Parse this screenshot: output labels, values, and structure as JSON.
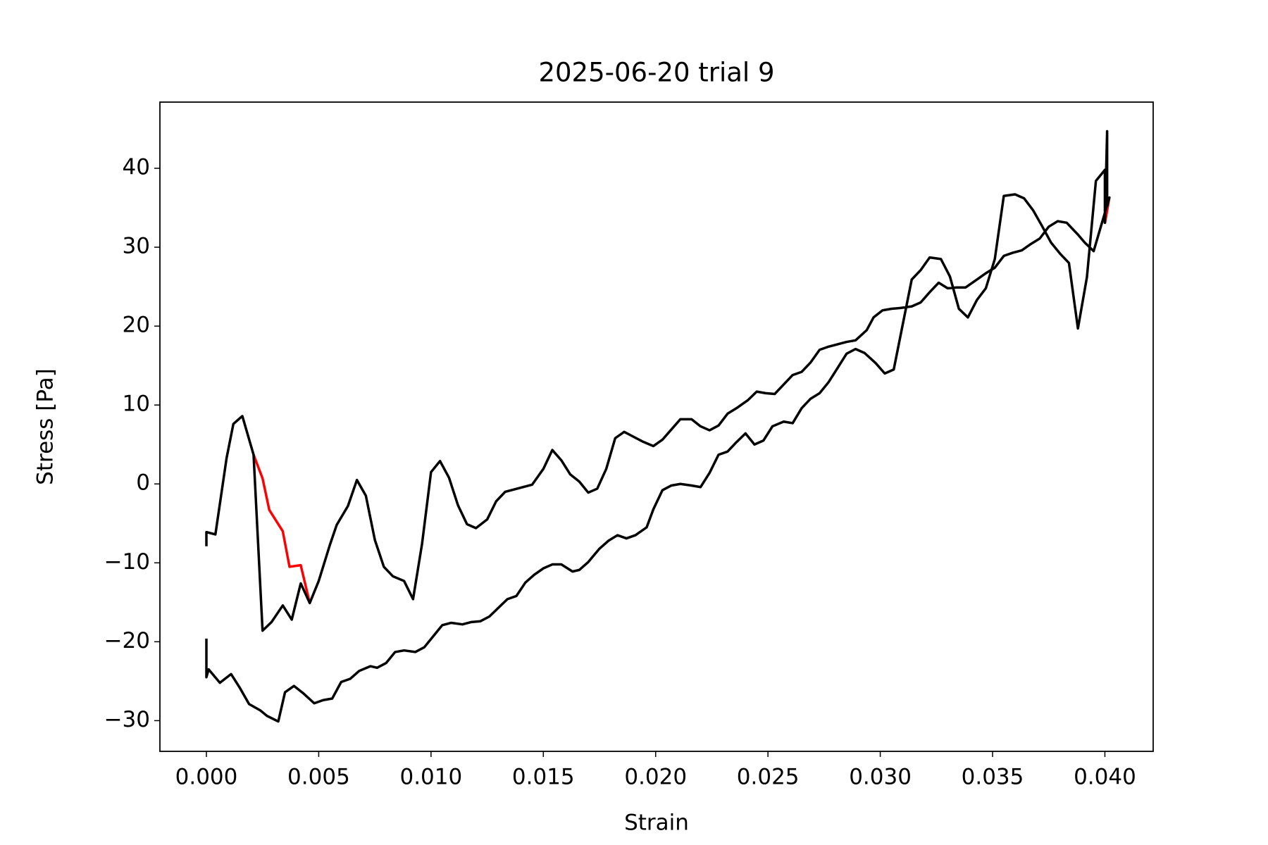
{
  "chart_data": {
    "type": "line",
    "title": "2025-06-20 trial 9",
    "x_label": "Strain",
    "y_label": "Stress [Pa]",
    "xlim": [
      -0.00207,
      0.04215
    ],
    "ylim": [
      -33.89,
      48.39
    ],
    "xticks": [
      {
        "value": 0,
        "label": "0.000"
      },
      {
        "value": 0.005,
        "label": "0.005"
      },
      {
        "value": 0.01,
        "label": "0.010"
      },
      {
        "value": 0.015,
        "label": "0.015"
      },
      {
        "value": 0.02,
        "label": "0.020"
      },
      {
        "value": 0.025,
        "label": "0.025"
      },
      {
        "value": 0.03,
        "label": "0.030"
      },
      {
        "value": 0.035,
        "label": "0.035"
      },
      {
        "value": 0.04,
        "label": "0.040"
      }
    ],
    "yticks": [
      {
        "value": -30,
        "label": "−30"
      },
      {
        "value": -20,
        "label": "−20"
      },
      {
        "value": -10,
        "label": "−10"
      },
      0,
      10,
      20,
      30,
      40
    ],
    "grid": false,
    "series": [
      {
        "color": "#ff0000",
        "x": [
          0.0021,
          0.0025,
          0.0028,
          0.0034,
          0.0037,
          0.0042,
          0.0046,
          null,
          0.04,
          0.0402
        ],
        "values": [
          3.7,
          0.7,
          -3.3,
          -6.0,
          -10.5,
          -10.3,
          -15.1,
          null,
          33.0,
          36.3
        ]
      },
      {
        "color": "#000000",
        "x": [
          0,
          0,
          0.0001,
          0.0006,
          0.0011,
          0.0015,
          0.0019,
          0.0024,
          0.0027,
          0.0032,
          0.0035,
          0.0039,
          0.0043,
          0.0048,
          0.0052,
          0.0056,
          0.006,
          0.0064,
          0.0068,
          0.0073,
          0.0076,
          0.008,
          0.0084,
          0.0088,
          0.0093,
          0.0097,
          0.0101,
          0.0105,
          0.0109,
          0.0114,
          0.0118,
          0.0122,
          0.0126,
          0.013,
          0.0134,
          0.0138,
          0.0142,
          0.0146,
          0.015,
          0.0154,
          0.0158,
          0.0163,
          0.0166,
          0.017,
          0.0175,
          0.0179,
          0.0183,
          0.0187,
          0.0191,
          0.0196,
          0.0199,
          0.0203,
          0.0207,
          0.0211,
          0.0216,
          0.022,
          0.0224,
          0.0228,
          0.0232,
          0.0236,
          0.024,
          0.0244,
          0.0248,
          0.0252,
          0.0257,
          0.0261,
          0.0265,
          0.0269,
          0.0273,
          0.0277,
          0.0281,
          0.0285,
          0.0289,
          0.0293,
          0.0298,
          0.0302,
          0.0306,
          0.0314,
          0.0318,
          0.0322,
          0.0327,
          0.0331,
          0.0335,
          0.0339,
          0.0343,
          0.0347,
          0.0351,
          0.0355,
          0.036,
          0.0364,
          0.0368,
          0.0372,
          0.0376,
          0.038,
          0.0384,
          0.0388,
          0.0392,
          0.0396,
          0.04,
          0.04,
          0.0401,
          0.0401,
          0.0402,
          0.0395,
          0.0391,
          0.0388,
          0.0383,
          0.0379,
          0.0375,
          0.0371,
          0.0367,
          0.0363,
          0.0359,
          0.0355,
          0.0351,
          0.0347,
          0.0343,
          0.0338,
          0.0334,
          0.033,
          0.0326,
          0.0322,
          0.0318,
          0.0314,
          0.0309,
          0.0305,
          0.0301,
          0.0297,
          0.0294,
          0.0289,
          0.0285,
          0.0281,
          0.0277,
          0.0273,
          0.0269,
          0.0265,
          0.0261,
          0.0257,
          0.0253,
          0.0249,
          0.0245,
          0.0241,
          0.0236,
          0.0232,
          0.0228,
          0.0224,
          0.022,
          0.0216,
          0.0211,
          0.0207,
          0.0203,
          0.0199,
          0.0194,
          0.019,
          0.0186,
          0.0182,
          0.0178,
          0.0174,
          0.017,
          0.0166,
          0.0162,
          0.0158,
          0.0154,
          0.015,
          0.0145,
          0.0141,
          0.0137,
          0.0133,
          0.0129,
          0.0125,
          0.012,
          0.0116,
          0.0112,
          0.0108,
          0.0104,
          0.01,
          0.0096,
          0.0092,
          0.0088,
          0.0083,
          0.0079,
          0.0075,
          0.0071,
          0.0067,
          0.0063,
          0.0058,
          0.0055,
          0.005,
          0.0046,
          0.0042,
          0.0038,
          0.0034,
          0.0029,
          0.0025,
          0.0021,
          0.0016,
          0.0012,
          0.0009,
          0.0004,
          0,
          0
        ],
        "values": [
          -19.6,
          -24.5,
          -23.5,
          -25.2,
          -24.1,
          -25.9,
          -27.9,
          -28.7,
          -29.4,
          -30.1,
          -26.4,
          -25.6,
          -26.5,
          -27.8,
          -27.4,
          -27.2,
          -25.1,
          -24.7,
          -23.7,
          -23.1,
          -23.3,
          -22.7,
          -21.3,
          -21.1,
          -21.3,
          -20.7,
          -19.3,
          -17.9,
          -17.6,
          -17.8,
          -17.5,
          -17.4,
          -16.8,
          -15.7,
          -14.6,
          -14.2,
          -12.5,
          -11.5,
          -10.7,
          -10.2,
          -10.2,
          -11.1,
          -10.9,
          -9.9,
          -8.2,
          -7.2,
          -6.5,
          -6.9,
          -6.5,
          -5.5,
          -3.2,
          -0.8,
          -0.2,
          0.0,
          -0.2,
          -0.4,
          1.4,
          3.7,
          4.1,
          5.3,
          6.4,
          5.0,
          5.5,
          7.3,
          7.9,
          7.7,
          9.6,
          10.8,
          11.5,
          12.9,
          14.7,
          16.5,
          17.1,
          16.6,
          15.3,
          14.0,
          14.5,
          25.9,
          27.1,
          28.7,
          28.5,
          26.3,
          22.2,
          21.1,
          23.3,
          24.8,
          28.5,
          36.5,
          36.7,
          36.2,
          34.7,
          32.7,
          30.6,
          29.2,
          28.0,
          19.7,
          26.2,
          38.4,
          39.8,
          33.1,
          44.7,
          35.2,
          36.3,
          29.5,
          30.6,
          31.6,
          33.1,
          33.3,
          32.6,
          31.1,
          30.4,
          29.6,
          29.3,
          28.9,
          27.4,
          26.7,
          25.9,
          24.9,
          24.9,
          24.8,
          25.5,
          24.3,
          23.0,
          22.5,
          22.3,
          22.2,
          22.0,
          21.1,
          19.5,
          18.2,
          18.0,
          17.7,
          17.4,
          17.0,
          15.4,
          14.2,
          13.8,
          12.6,
          11.4,
          11.5,
          11.7,
          10.6,
          9.6,
          8.9,
          7.4,
          6.8,
          7.3,
          8.2,
          8.2,
          6.9,
          5.6,
          4.8,
          5.4,
          6.0,
          6.6,
          5.8,
          1.9,
          -0.6,
          -1.1,
          0.3,
          1.2,
          3.0,
          4.3,
          1.9,
          -0.1,
          -0.4,
          -0.7,
          -1.0,
          -2.2,
          -4.5,
          -5.6,
          -5.1,
          -2.7,
          0.8,
          2.9,
          1.5,
          -7.6,
          -14.6,
          -12.3,
          -11.7,
          -10.5,
          -7.1,
          -1.5,
          0.5,
          -2.8,
          -5.2,
          -7.7,
          -12.3,
          -15.1,
          -12.6,
          -17.2,
          -15.4,
          -17.5,
          -18.6,
          3.7,
          8.6,
          7.6,
          3.3,
          -6.4,
          -6.1,
          -7.9
        ]
      }
    ]
  }
}
